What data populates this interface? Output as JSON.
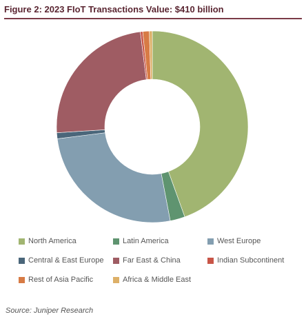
{
  "figure": {
    "title": "Figure 2: 2023 FIoT Transactions Value: $410 billion",
    "source": "Source: Juniper Research"
  },
  "chart_data": {
    "type": "pie",
    "style": "donut",
    "title": "Figure 2: 2023 FIoT Transactions Value: $410 billion",
    "start_angle_deg": 0,
    "direction": "clockwise",
    "legend_placement": "bottom",
    "series": [
      {
        "name": "North America",
        "value": 44.5,
        "color": "#a1b571"
      },
      {
        "name": "Latin America",
        "value": 2.5,
        "color": "#5f9470"
      },
      {
        "name": "West Europe",
        "value": 26.0,
        "color": "#839eb0"
      },
      {
        "name": "Central & East Europe",
        "value": 1.0,
        "color": "#4a667a"
      },
      {
        "name": "Far East & China",
        "value": 24.0,
        "color": "#9f5c63"
      },
      {
        "name": "Indian Subcontinent",
        "value": 0.4,
        "color": "#c85547"
      },
      {
        "name": "Rest of Asia Pacific",
        "value": 1.1,
        "color": "#d77b45"
      },
      {
        "name": "Africa & Middle East",
        "value": 0.5,
        "color": "#ddb068"
      }
    ]
  }
}
